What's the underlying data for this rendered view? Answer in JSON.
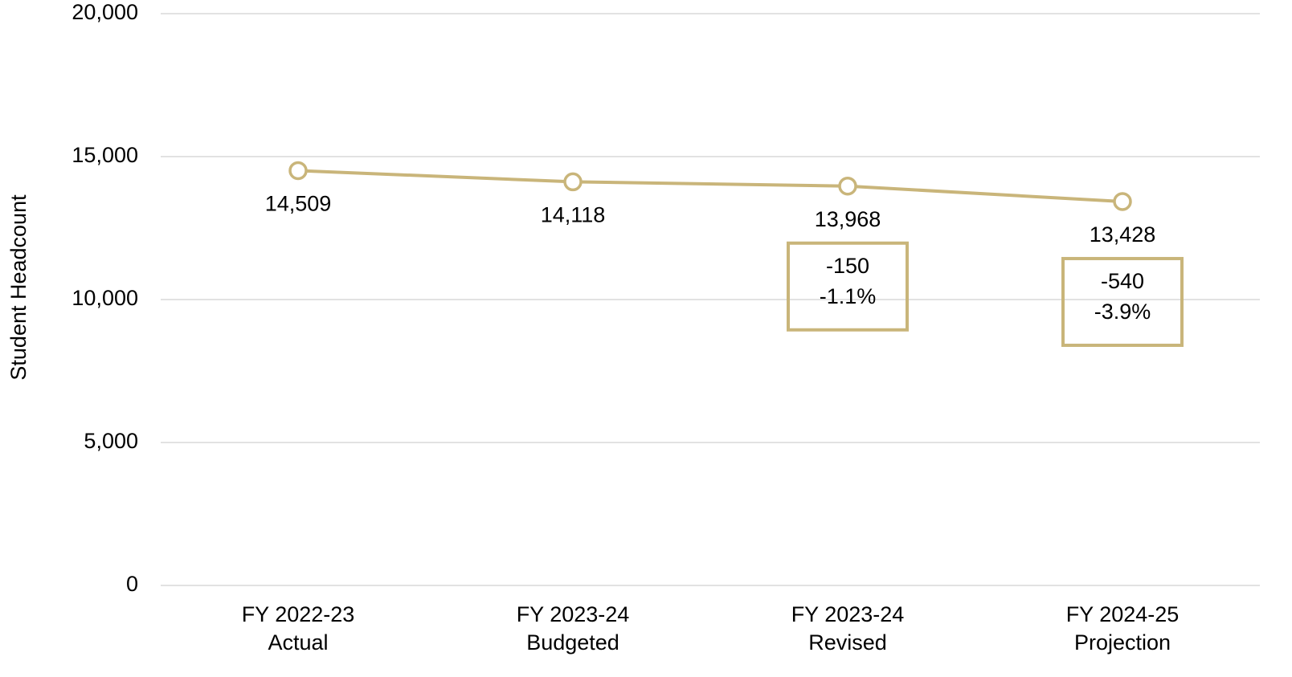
{
  "chart_data": {
    "type": "line",
    "y_label": "Student Headcount",
    "categories": [
      [
        "FY 2022-23",
        "Actual"
      ],
      [
        "FY 2023-24",
        "Budgeted"
      ],
      [
        "FY 2023-24",
        "Revised"
      ],
      [
        "FY 2024-25",
        "Projection"
      ]
    ],
    "series": [
      {
        "name": null,
        "color": "#c9b57a",
        "values": [
          14509,
          14118,
          13968,
          13428
        ],
        "value_labels": [
          "14,509",
          "14,118",
          "13,968",
          "13,428"
        ]
      }
    ],
    "annotations": [
      null,
      null,
      [
        "-150",
        "-1.1%"
      ],
      [
        "-540",
        "-3.9%"
      ]
    ],
    "ylim": [
      0,
      20000
    ],
    "yticks": [
      0,
      {
        "value": 5000,
        "label": "5,000"
      },
      {
        "value": 10000,
        "label": "10,000"
      },
      {
        "value": 15000,
        "label": "15,000"
      },
      {
        "value": 20000,
        "label": "20,000"
      }
    ],
    "grid": true
  }
}
